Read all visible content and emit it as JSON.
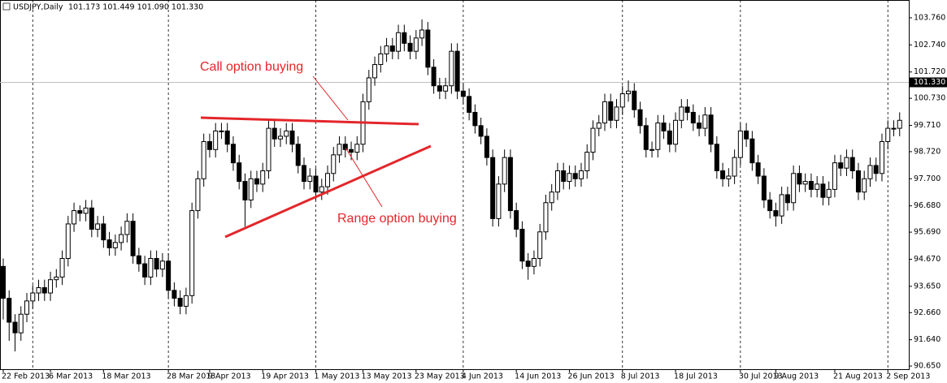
{
  "chart_data": {
    "type": "candlestick",
    "title": "USDJPY,Daily",
    "header_prices": "101.173 101.449 101.090 101.330",
    "last_price": {
      "value": 101.33,
      "label": "101.330"
    },
    "annotations": [
      "Call option buying",
      "Range option buying"
    ],
    "bull_color": "#ffffff",
    "bear_color": "#000000",
    "annotation_color": "#e3262b",
    "ylim": [
      90.53,
      104.43
    ],
    "yticks": [
      {
        "value": 103.76,
        "label": "103.760"
      },
      {
        "value": 102.74,
        "label": "102.740"
      },
      {
        "value": 101.72,
        "label": "101.720"
      },
      {
        "value": 100.73,
        "label": "100.730"
      },
      {
        "value": 99.71,
        "label": "99.710"
      },
      {
        "value": 98.72,
        "label": "98.720"
      },
      {
        "value": 97.7,
        "label": "97.700"
      },
      {
        "value": 96.68,
        "label": "96.680"
      },
      {
        "value": 95.69,
        "label": "95.690"
      },
      {
        "value": 94.67,
        "label": "94.670"
      },
      {
        "value": 93.65,
        "label": "93.650"
      },
      {
        "value": 92.66,
        "label": "92.660"
      },
      {
        "value": 91.64,
        "label": "91.640"
      },
      {
        "value": 90.65,
        "label": "90.650"
      }
    ],
    "categories": [
      "22 Feb 2013",
      null,
      null,
      null,
      null,
      null,
      null,
      null,
      "6 Mar 2013",
      null,
      null,
      null,
      null,
      null,
      null,
      null,
      null,
      "18 Mar 2013",
      null,
      null,
      null,
      null,
      null,
      null,
      null,
      null,
      null,
      null,
      "28 Mar 2013",
      null,
      null,
      null,
      null,
      null,
      null,
      "9 Apr 2013",
      null,
      null,
      null,
      null,
      null,
      null,
      null,
      null,
      "19 Apr 2013",
      null,
      null,
      null,
      null,
      null,
      null,
      null,
      null,
      "1 May 2013",
      null,
      null,
      null,
      null,
      null,
      null,
      null,
      "13 May 2013",
      null,
      null,
      null,
      null,
      null,
      null,
      null,
      null,
      "23 May 2013",
      null,
      null,
      null,
      null,
      null,
      null,
      null,
      "4 Jun 2013",
      null,
      null,
      null,
      null,
      null,
      null,
      null,
      null,
      "14 Jun 2013",
      null,
      null,
      null,
      null,
      null,
      null,
      null,
      null,
      "26 Jun 2013",
      null,
      null,
      null,
      null,
      null,
      null,
      null,
      null,
      "8 Jul 2013",
      null,
      null,
      null,
      null,
      null,
      null,
      null,
      null,
      "18 Jul 2013",
      null,
      null,
      null,
      null,
      null,
      null,
      null,
      null,
      null,
      null,
      "30 Jul 2013",
      null,
      null,
      null,
      null,
      null,
      "9 Aug 2013",
      null,
      null,
      null,
      null,
      null,
      null,
      null,
      null,
      null,
      "21 Aug 2013",
      null,
      null,
      null,
      null,
      null,
      null,
      null,
      null,
      "2 Sep 2013",
      null,
      null
    ],
    "open": [
      94.4,
      93.2,
      92.3,
      91.9,
      92.6,
      93.1,
      93.4,
      93.6,
      93.4,
      93.9,
      94.0,
      94.7,
      96.0,
      96.5,
      96.4,
      96.6,
      95.8,
      96.0,
      95.4,
      95.1,
      95.3,
      95.6,
      96.1,
      94.8,
      94.5,
      94.0,
      94.7,
      94.3,
      94.6,
      93.5,
      93.2,
      92.9,
      93.3,
      96.5,
      97.7,
      99.1,
      98.8,
      99.5,
      99.5,
      99.0,
      98.3,
      97.6,
      96.9,
      97.7,
      97.5,
      98.0,
      99.6,
      99.2,
      99.3,
      99.5,
      99.0,
      98.2,
      97.6,
      97.8,
      97.2,
      97.4,
      97.9,
      98.6,
      99.0,
      98.8,
      98.7,
      99.0,
      100.6,
      101.5,
      102.0,
      102.4,
      102.7,
      102.5,
      103.2,
      102.8,
      102.5,
      103.0,
      103.3,
      101.9,
      101.2,
      101.0,
      101.2,
      102.5,
      101.0,
      100.8,
      100.2,
      99.7,
      99.3,
      98.5,
      96.2,
      97.5,
      98.5,
      96.5,
      95.8,
      94.6,
      94.4,
      94.7,
      95.7,
      96.8,
      97.2,
      98.0,
      97.6,
      97.9,
      97.7,
      98.0,
      98.7,
      99.6,
      99.8,
      100.6,
      99.9,
      100.4,
      100.9,
      101.0,
      100.3,
      99.7,
      98.8,
      98.8,
      99.8,
      99.5,
      99.0,
      99.9,
      100.4,
      100.2,
      99.8,
      99.6,
      100.1,
      99.0,
      98.0,
      97.7,
      97.8,
      98.5,
      99.5,
      99.2,
      98.3,
      97.8,
      96.9,
      96.5,
      96.3,
      97.1,
      96.8,
      97.9,
      97.5,
      97.6,
      97.3,
      97.5,
      97.0,
      97.3,
      98.3,
      98.1,
      98.5,
      98.0,
      97.2,
      97.7,
      98.2,
      97.9,
      99.1,
      99.6,
      99.6
    ],
    "high": [
      94.7,
      93.5,
      92.6,
      92.9,
      93.4,
      93.7,
      93.9,
      93.9,
      94.2,
      94.3,
      95.0,
      96.3,
      96.8,
      96.7,
      96.9,
      96.9,
      96.3,
      96.3,
      95.7,
      95.6,
      95.9,
      96.4,
      96.4,
      95.1,
      94.8,
      95.0,
      95.0,
      94.9,
      94.9,
      93.8,
      93.5,
      93.6,
      96.8,
      98.0,
      99.4,
      99.4,
      99.8,
      99.8,
      99.8,
      99.3,
      98.6,
      97.9,
      98.0,
      98.0,
      98.3,
      99.9,
      99.9,
      99.6,
      99.8,
      99.8,
      99.3,
      98.5,
      98.1,
      98.1,
      97.7,
      98.2,
      98.9,
      99.3,
      99.3,
      99.1,
      99.3,
      100.9,
      101.8,
      102.3,
      102.7,
      103.0,
      103.0,
      103.5,
      103.5,
      103.1,
      103.3,
      103.7,
      103.6,
      102.2,
      101.5,
      101.5,
      102.8,
      102.8,
      101.3,
      101.1,
      100.5,
      100.0,
      99.6,
      98.8,
      97.8,
      98.8,
      98.8,
      96.8,
      96.1,
      94.9,
      95.0,
      96.0,
      97.1,
      97.5,
      98.3,
      98.3,
      98.2,
      98.2,
      98.3,
      99.0,
      99.9,
      100.1,
      100.9,
      100.9,
      100.7,
      101.2,
      101.4,
      101.3,
      100.6,
      100.0,
      99.1,
      100.1,
      100.1,
      99.8,
      100.2,
      100.7,
      100.7,
      100.5,
      100.1,
      100.4,
      100.4,
      99.3,
      98.3,
      98.1,
      98.8,
      99.8,
      99.8,
      99.5,
      98.6,
      98.1,
      97.2,
      96.8,
      97.4,
      97.4,
      98.2,
      98.2,
      97.9,
      97.9,
      97.8,
      97.8,
      97.6,
      98.6,
      98.6,
      98.8,
      98.8,
      98.3,
      98.0,
      98.5,
      98.5,
      99.4,
      99.9,
      99.9,
      100.2
    ],
    "low": [
      92.4,
      91.6,
      91.2,
      91.6,
      92.3,
      92.8,
      93.1,
      93.1,
      93.1,
      93.6,
      93.7,
      94.4,
      95.7,
      96.1,
      96.1,
      95.5,
      95.5,
      95.1,
      94.8,
      94.8,
      95.0,
      95.3,
      94.5,
      94.2,
      93.7,
      93.7,
      94.0,
      94.0,
      93.2,
      92.9,
      92.6,
      92.6,
      93.0,
      96.2,
      97.4,
      98.5,
      98.5,
      99.2,
      98.7,
      98.0,
      97.3,
      95.9,
      96.6,
      97.2,
      97.2,
      97.7,
      98.9,
      98.9,
      99.0,
      98.7,
      97.9,
      97.3,
      97.3,
      96.9,
      96.9,
      97.1,
      97.6,
      98.3,
      98.5,
      98.4,
      98.4,
      98.7,
      100.3,
      101.2,
      101.7,
      102.1,
      102.2,
      102.2,
      102.5,
      102.2,
      102.2,
      102.7,
      101.6,
      100.9,
      100.7,
      100.7,
      100.9,
      100.7,
      100.5,
      99.9,
      99.4,
      99.0,
      98.2,
      95.9,
      95.9,
      97.2,
      96.2,
      95.5,
      94.3,
      93.9,
      94.1,
      94.4,
      95.4,
      96.5,
      96.9,
      97.3,
      97.3,
      97.4,
      97.4,
      97.7,
      98.4,
      99.3,
      99.5,
      99.6,
      99.6,
      100.1,
      100.6,
      100.0,
      99.4,
      98.5,
      98.5,
      98.5,
      99.2,
      98.7,
      98.7,
      99.6,
      99.9,
      99.5,
      99.3,
      99.3,
      98.7,
      97.7,
      97.4,
      97.4,
      97.5,
      98.2,
      98.9,
      98.0,
      97.5,
      96.6,
      96.2,
      95.9,
      96.0,
      96.5,
      96.5,
      97.2,
      97.2,
      97.0,
      97.0,
      96.7,
      96.7,
      97.0,
      97.8,
      97.8,
      97.7,
      96.9,
      96.9,
      97.4,
      97.6,
      97.6,
      98.8,
      99.3,
      99.3
    ],
    "close": [
      93.2,
      92.3,
      91.9,
      92.6,
      93.1,
      93.4,
      93.6,
      93.4,
      93.9,
      94.0,
      94.7,
      96.0,
      96.5,
      96.4,
      96.6,
      95.8,
      96.0,
      95.4,
      95.1,
      95.3,
      95.6,
      96.1,
      94.8,
      94.5,
      94.0,
      94.7,
      94.3,
      94.6,
      93.5,
      93.2,
      92.9,
      93.3,
      96.5,
      97.7,
      99.1,
      98.8,
      99.5,
      99.5,
      99.0,
      98.3,
      97.6,
      96.9,
      97.7,
      97.5,
      98.0,
      99.6,
      99.2,
      99.3,
      99.5,
      99.0,
      98.2,
      97.6,
      97.8,
      97.2,
      97.4,
      97.9,
      98.6,
      99.0,
      98.8,
      98.7,
      99.0,
      100.6,
      101.5,
      102.0,
      102.4,
      102.7,
      102.5,
      103.2,
      102.8,
      102.5,
      103.0,
      103.3,
      101.9,
      101.2,
      101.0,
      101.2,
      102.5,
      101.0,
      100.8,
      100.2,
      99.7,
      99.3,
      98.5,
      96.2,
      97.5,
      98.5,
      96.5,
      95.8,
      94.6,
      94.4,
      94.7,
      95.7,
      96.8,
      97.2,
      98.0,
      97.6,
      97.9,
      97.7,
      98.0,
      98.7,
      99.6,
      99.8,
      100.6,
      99.9,
      100.4,
      100.9,
      101.0,
      100.3,
      99.7,
      98.8,
      98.8,
      99.8,
      99.5,
      99.0,
      99.9,
      100.4,
      100.2,
      99.8,
      99.6,
      100.1,
      99.0,
      98.0,
      97.7,
      97.8,
      98.5,
      99.5,
      99.2,
      98.3,
      97.8,
      96.9,
      96.5,
      96.3,
      97.1,
      96.8,
      97.9,
      97.5,
      97.6,
      97.3,
      97.5,
      97.0,
      97.3,
      98.3,
      98.1,
      98.5,
      98.0,
      97.2,
      97.7,
      98.2,
      97.9,
      99.1,
      99.6,
      99.6,
      99.9
    ]
  }
}
